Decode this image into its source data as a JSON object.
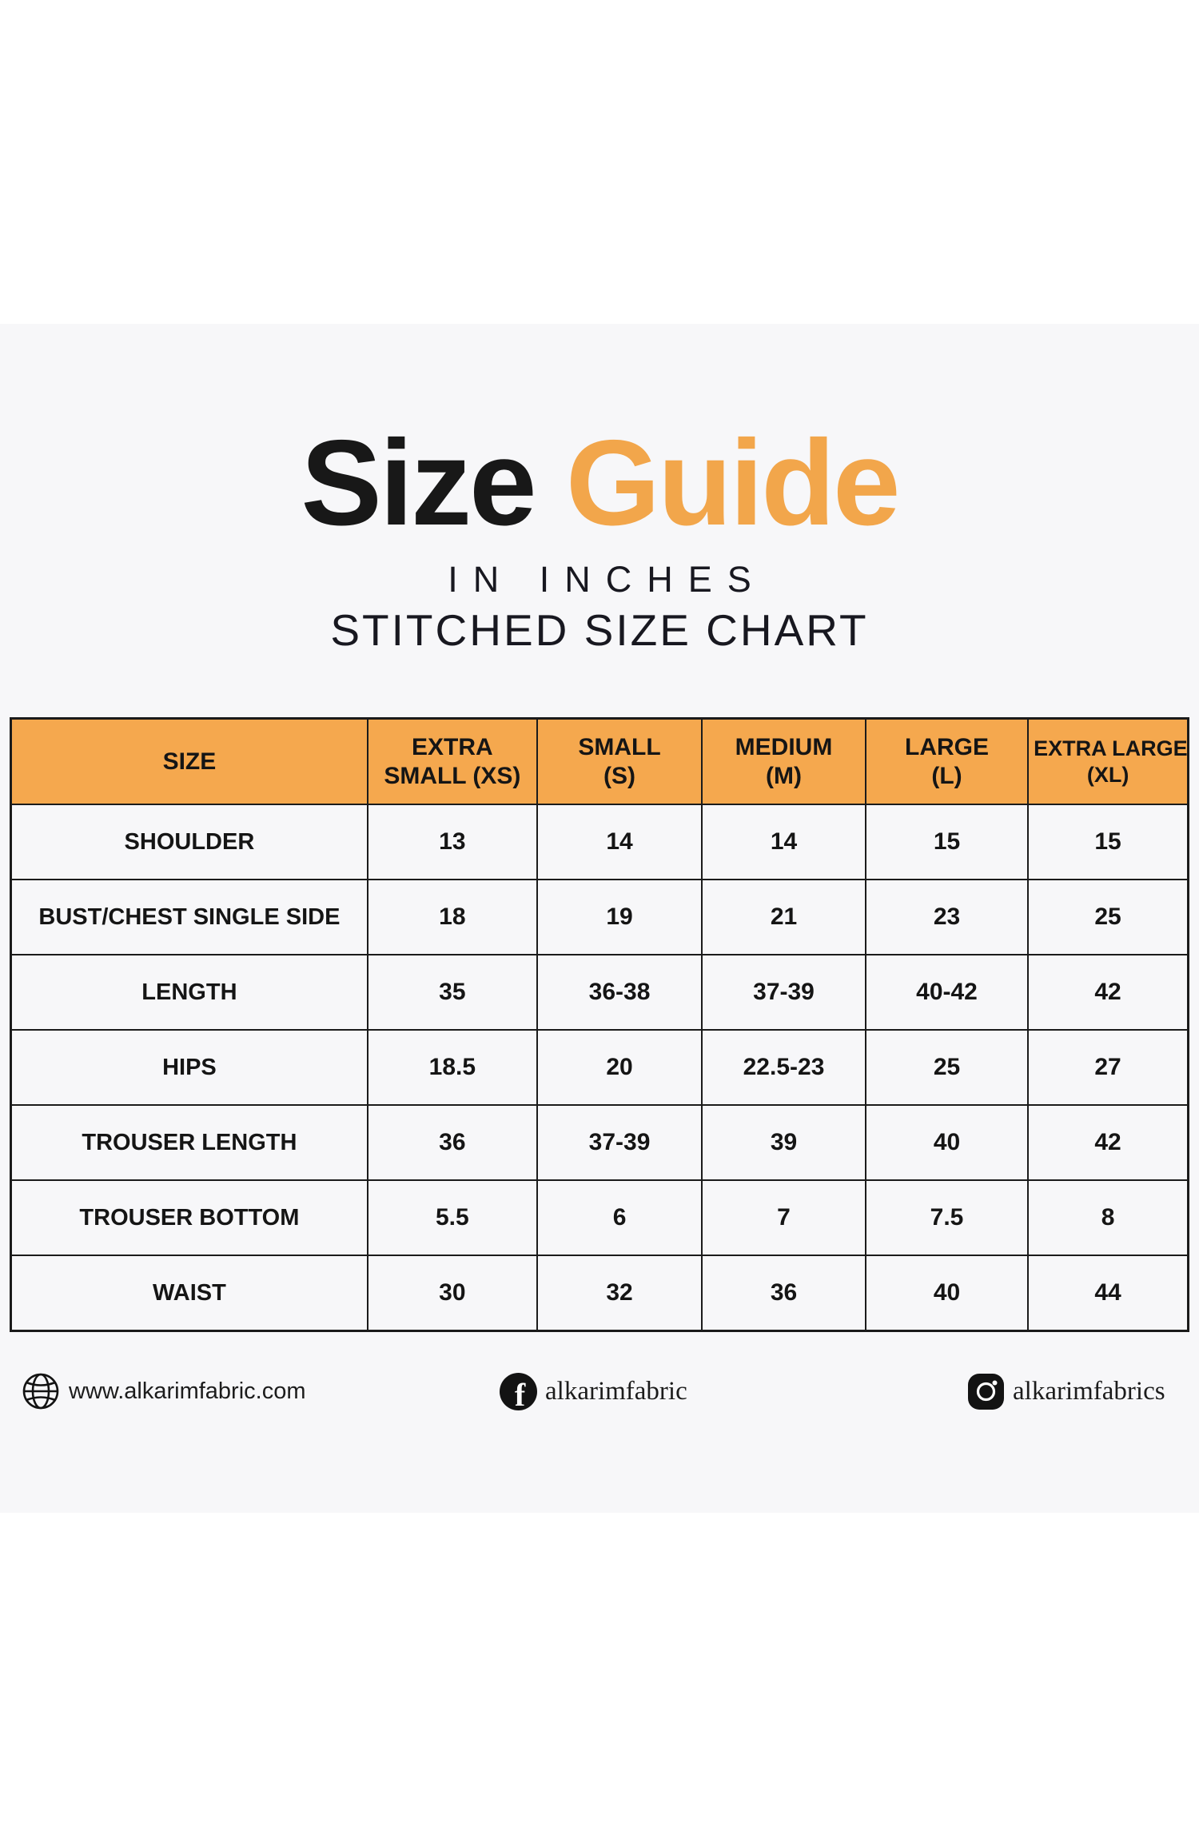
{
  "title": {
    "word_black": "Size",
    "word_orange": "Guide"
  },
  "subtitle_line1": "IN INCHES",
  "subtitle_line2": "STITCHED SIZE CHART",
  "table": {
    "columns": [
      {
        "id": "size",
        "lines": [
          "SIZE"
        ]
      },
      {
        "id": "xs",
        "lines": [
          "EXTRA",
          "SMALL (XS)"
        ]
      },
      {
        "id": "s",
        "lines": [
          "SMALL",
          "(S)"
        ]
      },
      {
        "id": "m",
        "lines": [
          "MEDIUM",
          "(M)"
        ]
      },
      {
        "id": "l",
        "lines": [
          "LARGE",
          "(L)"
        ]
      },
      {
        "id": "xl",
        "lines": [
          "EXTRA LARGE",
          "(XL)"
        ]
      }
    ],
    "rows": [
      {
        "label": "SHOULDER",
        "values": [
          "13",
          "14",
          "14",
          "15",
          "15"
        ]
      },
      {
        "label": "BUST/CHEST SINGLE SIDE",
        "values": [
          "18",
          "19",
          "21",
          "23",
          "25"
        ]
      },
      {
        "label": "LENGTH",
        "values": [
          "35",
          "36-38",
          "37-39",
          "40-42",
          "42"
        ]
      },
      {
        "label": "HIPS",
        "values": [
          "18.5",
          "20",
          "22.5-23",
          "25",
          "27"
        ]
      },
      {
        "label": "TROUSER LENGTH",
        "values": [
          "36",
          "37-39",
          "39",
          "40",
          "42"
        ]
      },
      {
        "label": "TROUSER BOTTOM",
        "values": [
          "5.5",
          "6",
          "7",
          "7.5",
          "8"
        ]
      },
      {
        "label": "WAIST",
        "values": [
          "30",
          "32",
          "36",
          "40",
          "44"
        ]
      }
    ]
  },
  "footer": {
    "website": {
      "icon": "globe-icon",
      "text": "www.alkarimfabric.com"
    },
    "facebook": {
      "icon": "facebook-icon",
      "text": "alkarimfabric"
    },
    "instagram": {
      "icon": "instagram-icon",
      "text": "alkarimfabrics"
    }
  },
  "colors": {
    "title_orange": "#f2a64b",
    "header_orange": "#f5a84e",
    "band_grey": "#f7f7f9",
    "border_black": "#1b1b1b",
    "text_black": "#151515"
  }
}
